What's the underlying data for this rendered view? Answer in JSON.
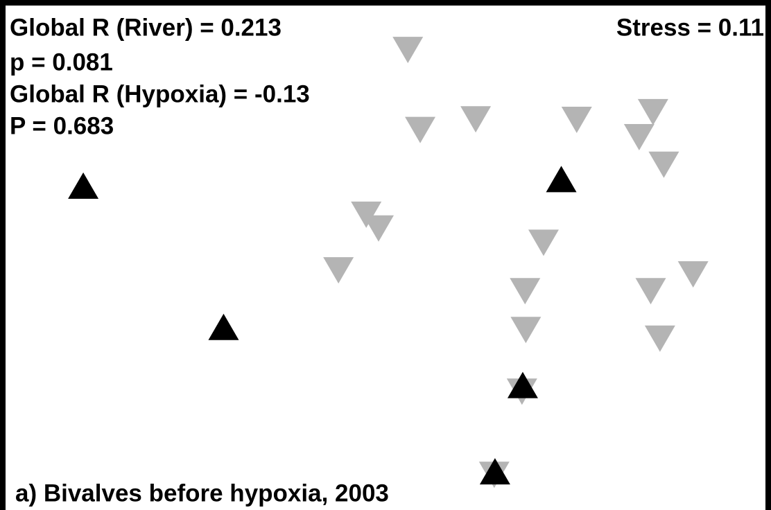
{
  "chart_data": {
    "type": "scatter",
    "title": "a) Bivalves before hypoxia, 2003",
    "annotations": [
      "Global R (River) = 0.213",
      "p = 0.081",
      "Global R (Hypoxia) = -0.13",
      "P = 0.683"
    ],
    "stress": "Stress = 0.11",
    "xlim": [
      0,
      100
    ],
    "ylim": [
      0,
      100
    ],
    "series": [
      {
        "color": "#b4b4b4",
        "marker": "triangle-down",
        "x": [
          52.9,
          54.5,
          61.7,
          74.8,
          84.7,
          82.9,
          86.1,
          47.5,
          49.1,
          70.5,
          43.9,
          89.9,
          68.1,
          84.4,
          68.2,
          85.6,
          67.7,
          64.1
        ],
        "values": [
          90.2,
          74.5,
          76.6,
          76.5,
          78.0,
          73.1,
          67.7,
          57.9,
          55.2,
          52.4,
          47.0,
          46.2,
          42.9,
          42.9,
          35.3,
          33.6,
          23.2,
          6.9
        ]
      },
      {
        "color": "#000000",
        "marker": "triangle-up",
        "x": [
          10.8,
          72.8,
          29.0,
          67.8,
          64.2
        ],
        "values": [
          63.6,
          64.9,
          35.9,
          24.5,
          7.6
        ]
      }
    ]
  }
}
